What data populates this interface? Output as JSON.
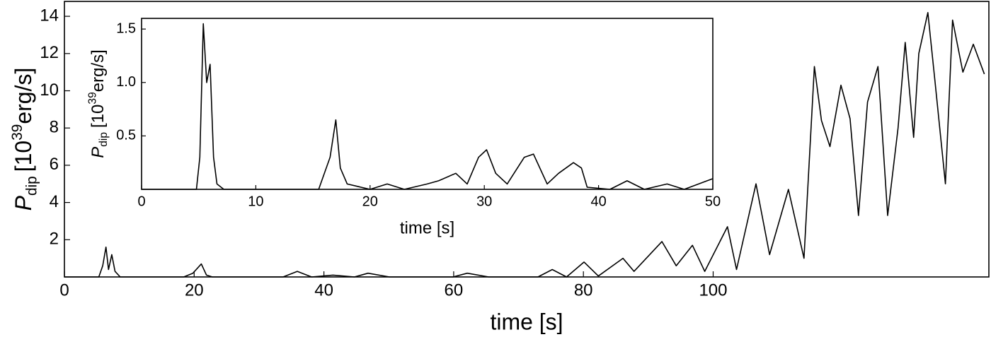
{
  "chart_data": [
    {
      "type": "line",
      "color": "#000000",
      "x_label": "time [s]",
      "y_label": {
        "symbol": "P",
        "subscript": "dip",
        "prefix": "[10",
        "exponent": "39",
        "unit": "erg/s]"
      },
      "xlim": [
        0,
        142.5
      ],
      "xticks": [
        0,
        20,
        40,
        60,
        80,
        100
      ],
      "ylim": [
        0,
        14.8
      ],
      "yticks": [
        2,
        4,
        6,
        8,
        10,
        12,
        14
      ],
      "x": [
        0,
        5.3,
        5.9,
        6.4,
        6.8,
        7.3,
        7.8,
        8.6,
        18.4,
        19.8,
        21.1,
        21.9,
        22.8,
        33.7,
        35.9,
        38.1,
        41.4,
        44.7,
        46.8,
        50.1,
        59.9,
        62.1,
        65.4,
        73,
        75.2,
        77.4,
        80.1,
        82.3,
        86.1,
        87.8,
        92.1,
        94.3,
        96.8,
        98.7,
        102.2,
        103.6,
        106.6,
        108.7,
        111.6,
        114,
        115.6,
        116.7,
        118,
        119.7,
        121.1,
        122.4,
        123.8,
        125.4,
        126.9,
        128.5,
        129.6,
        130.9,
        131.7,
        133.1,
        134.2,
        135.8,
        136.9,
        138.5,
        140.1,
        141.8
      ],
      "values": [
        0,
        0,
        0.6,
        1.6,
        0.4,
        1.2,
        0.3,
        0,
        0,
        0.2,
        0.7,
        0.1,
        0,
        0,
        0.3,
        0,
        0.1,
        0,
        0.2,
        0,
        0,
        0.2,
        0,
        0,
        0.4,
        0,
        0.8,
        0.05,
        1.0,
        0.3,
        1.9,
        0.6,
        1.7,
        0.3,
        2.7,
        0.4,
        5.0,
        1.2,
        4.7,
        1.0,
        11.3,
        8.4,
        7.0,
        10.3,
        8.5,
        3.3,
        9.4,
        11.3,
        3.3,
        8.0,
        12.6,
        7.5,
        12.0,
        14.2,
        10.5,
        5.0,
        13.8,
        11.0,
        12.5,
        10.9
      ]
    },
    {
      "type": "line",
      "color": "#000000",
      "x_label": "time [s]",
      "y_label": {
        "symbol": "P",
        "subscript": "dip",
        "prefix": "[10",
        "exponent": "39",
        "unit": "erg/s]"
      },
      "xlim": [
        0,
        50
      ],
      "xticks": [
        0,
        10,
        20,
        30,
        40,
        50
      ],
      "ylim": [
        0,
        1.6
      ],
      "yticks": [
        {
          "value": 0.5,
          "label": "0.5"
        },
        {
          "value": 1.0,
          "label": "1.0"
        },
        {
          "value": 1.5,
          "label": "1.5"
        }
      ],
      "x": [
        0,
        4.8,
        5.1,
        5.4,
        5.7,
        6.0,
        6.3,
        6.6,
        7.2,
        15.5,
        16.5,
        17.0,
        17.4,
        18,
        20,
        21.5,
        23,
        25,
        26,
        27.5,
        28.5,
        29.5,
        30.2,
        31,
        32,
        33.5,
        34.3,
        35.5,
        36.5,
        37.8,
        38.5,
        39,
        41,
        42.5,
        44,
        46,
        47.5,
        49.5,
        50
      ],
      "values": [
        0,
        0,
        0.3,
        1.55,
        1.0,
        1.17,
        0.3,
        0.05,
        0,
        0,
        0.3,
        0.65,
        0.2,
        0.05,
        0,
        0.05,
        0,
        0.05,
        0.08,
        0.15,
        0.05,
        0.3,
        0.37,
        0.15,
        0.05,
        0.3,
        0.33,
        0.05,
        0.15,
        0.25,
        0.2,
        0.02,
        0,
        0.08,
        0,
        0.05,
        0,
        0.08,
        0.1
      ]
    }
  ]
}
